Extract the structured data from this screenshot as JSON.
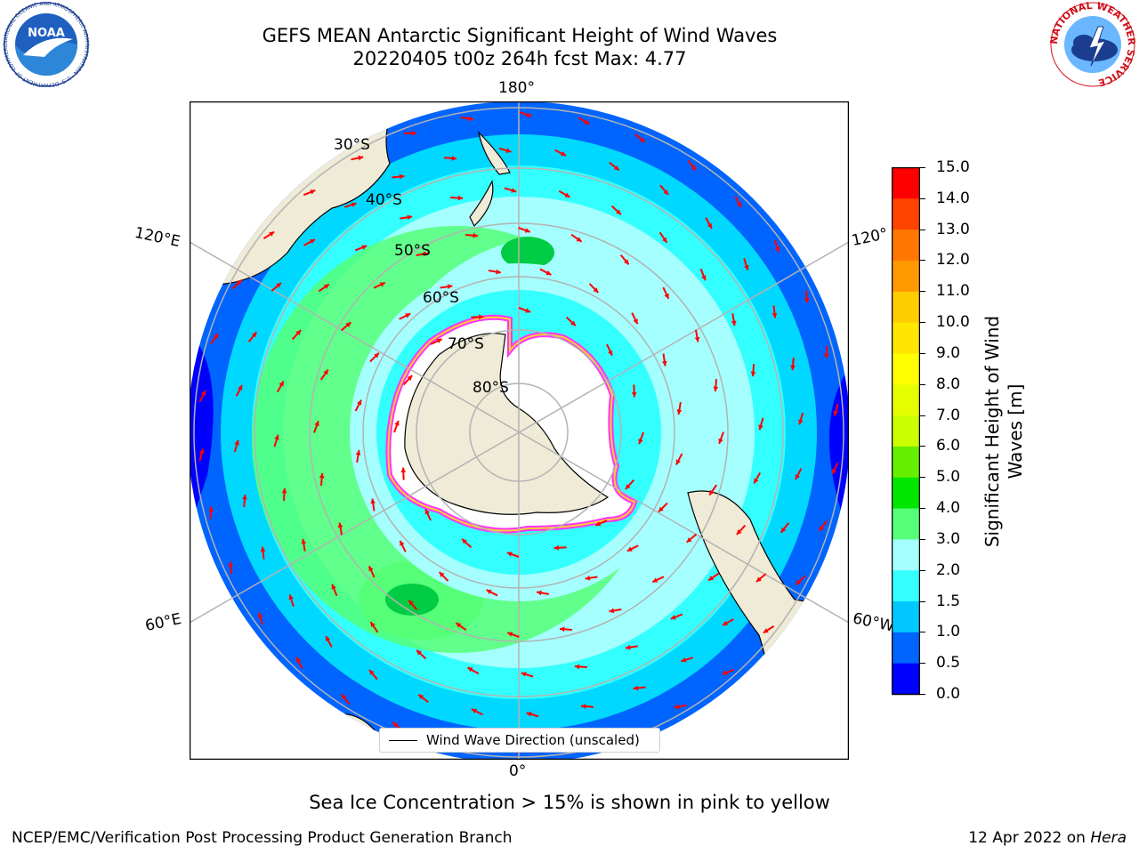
{
  "title_line1": "GEFS MEAN Antarctic Significant Height of Wind Waves",
  "title_line2": "20220405 t00z 264h fcst   Max: 4.77",
  "logos": {
    "left": "noara-logo",
    "right": "national-weather-service-logo",
    "left_text": "NOAA",
    "left_ring": "NATIONAL OCEANIC AND ATMOSPHERIC ADMINISTRATION · U.S. DEPARTMENT OF COMMERCE",
    "right_ring": "NATIONAL WEATHER SERVICE"
  },
  "map": {
    "projection": "south polar stereographic",
    "lon_labels": {
      "top": "180°",
      "bottom": "0°",
      "upper_left": "120°E",
      "lower_left": "60°E",
      "upper_right": "120°",
      "lower_right": "60°W"
    },
    "lat_labels": [
      "30°S",
      "40°S",
      "50°S",
      "60°S",
      "70°S",
      "80°S"
    ],
    "legend": "Wind Wave Direction (unscaled)",
    "colors": {
      "land": "#efebd7",
      "ice": "#ffffff",
      "ice_edge_pink": "#ff33ff",
      "ice_edge_yellow": "#ffcc33",
      "arrow": "#ff0000",
      "grid": "#b3b3b3"
    }
  },
  "colorbar": {
    "label": "Significant Height of Wind Waves [m]",
    "ticks": [
      "0.0",
      "0.5",
      "1.0",
      "1.5",
      "2.0",
      "3.0",
      "4.0",
      "5.0",
      "6.0",
      "7.0",
      "8.0",
      "9.0",
      "10.0",
      "11.0",
      "12.0",
      "13.0",
      "14.0",
      "15.0"
    ],
    "colors": [
      "#0000ff",
      "#0064ff",
      "#00c8ff",
      "#33ffff",
      "#a5ffff",
      "#55ff77",
      "#00e600",
      "#66ee00",
      "#ccff00",
      "#e6ff00",
      "#ffff00",
      "#ffe600",
      "#ffcc00",
      "#ff9900",
      "#ff7700",
      "#ff4400",
      "#ff0000"
    ]
  },
  "note": "Sea Ice Concentration > 15% is shown in pink to yellow",
  "footer_left": "NCEP/EMC/Verification Post Processing Product Generation Branch",
  "footer_right_prefix": "12 Apr 2022 on ",
  "footer_right_host": "Hera"
}
